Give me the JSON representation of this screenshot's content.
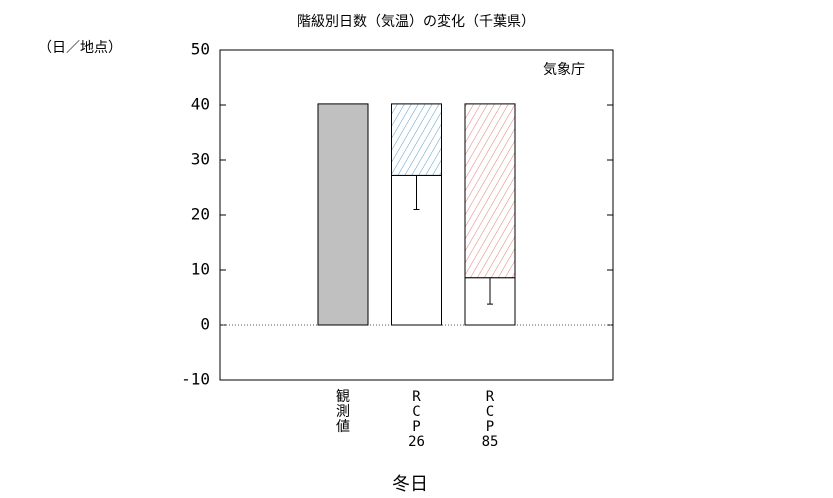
{
  "chart_data": {
    "type": "bar",
    "title": "階級別日数（気温）の変化（千葉県）",
    "y_label": "（日／地点）",
    "annotation": "気象庁",
    "x_label": "冬日",
    "categories": [
      [
        "観",
        "測",
        "値"
      ],
      [
        "R",
        "C",
        "P",
        "26"
      ],
      [
        "R",
        "C",
        "P",
        "85"
      ]
    ],
    "stacked": true,
    "series": [
      {
        "color": "#c0c0c0",
        "values": [
          40.2,
          null,
          null
        ]
      },
      {
        "color": "#ffffff",
        "values": [
          null,
          27.2,
          8.6
        ],
        "errors": [
          null,
          6.2,
          4.8
        ]
      },
      {
        "colors": [
          null,
          "#5b9bc8",
          "#e0806e"
        ],
        "hatch": true,
        "values": [
          null,
          13.0,
          31.6
        ]
      }
    ],
    "ylim": [
      -10,
      50
    ],
    "yticks": [
      -10,
      0,
      10,
      20,
      30,
      40,
      50
    ],
    "zero_line": true
  }
}
